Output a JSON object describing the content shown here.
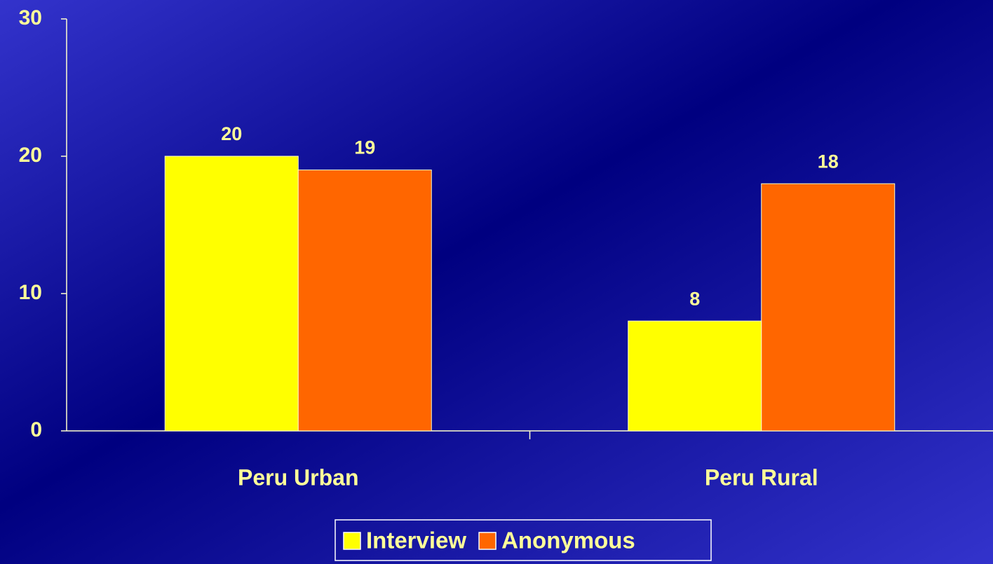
{
  "chart_data": {
    "type": "bar",
    "categories": [
      "Peru Urban",
      "Peru Rural"
    ],
    "series": [
      {
        "name": "Interview",
        "color": "#ffff00",
        "values": [
          20,
          8
        ]
      },
      {
        "name": "Anonymous",
        "color": "#ff6600",
        "values": [
          19,
          18
        ]
      }
    ],
    "ylim": [
      0,
      30
    ],
    "yticks": [
      0,
      10,
      20,
      30
    ],
    "grid": false,
    "legend": "bottom"
  }
}
